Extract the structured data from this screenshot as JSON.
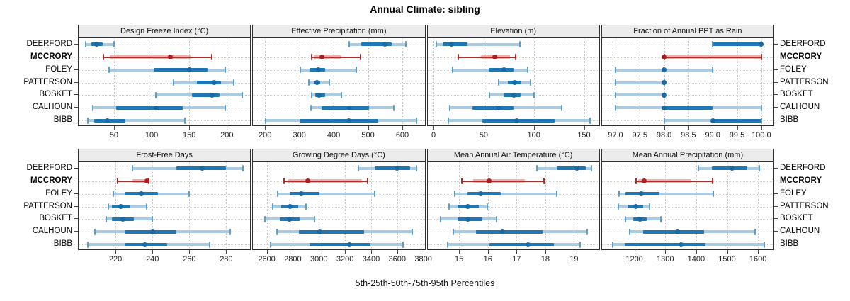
{
  "title": "Annual Climate: sibling",
  "caption": "5th-25th-50th-75th-95th Percentiles",
  "highlight_site": "MCCRORY",
  "colors": {
    "blue_light": "#A9CCE3",
    "blue_dark": "#1F77B4",
    "blue_cap": "#5C9FCB",
    "blue_dot": "#1A6AA2",
    "red_light": "#F2AFAB",
    "red_dark": "#B02A26",
    "red_dot": "#B01F1F",
    "strip_bg": "#ECECEC",
    "panel_border": "#2F2F2F",
    "grid": "#C9C9C9",
    "text": "#1A1A1A"
  },
  "chart_data": {
    "type": "dotplot-percentiles",
    "percentiles": [
      5,
      25,
      50,
      75,
      95
    ],
    "sites": [
      "DEERFORD",
      "MCCRORY",
      "FOLEY",
      "PATTERSON",
      "BOSKET",
      "CALHOUN",
      "BIBB"
    ],
    "legend_note": "values per site are [5th, 25th, 50th, 75th, 95th] percentiles",
    "panels": [
      {
        "title": "Design Freeze Index (°C)",
        "grid_row": 0,
        "grid_col": 0,
        "domain": [
          3,
          231
        ],
        "ticks": [
          50,
          100,
          150,
          200
        ],
        "tick_labels": [
          "50",
          "100",
          "150",
          "200"
        ],
        "values": {
          "DEERFORD": [
            12,
            20,
            27,
            35,
            50
          ],
          "MCCRORY": [
            36,
            44,
            125,
            153,
            180
          ],
          "FOLEY": [
            43,
            103,
            150,
            174,
            198
          ],
          "PATTERSON": [
            129,
            160,
            183,
            192,
            209
          ],
          "BOSKET": [
            106,
            154,
            180,
            190,
            220
          ],
          "CALHOUN": [
            22,
            53,
            106,
            141,
            198
          ],
          "BIBB": [
            15,
            24,
            41,
            65,
            144
          ]
        }
      },
      {
        "title": "Effective Precipitation (mm)",
        "grid_row": 0,
        "grid_col": 1,
        "domain": [
          165,
          665
        ],
        "ticks": [
          200,
          300,
          400,
          500,
          600
        ],
        "tick_labels": [
          "200",
          "300",
          "400",
          "500",
          "600"
        ],
        "values": {
          "DEERFORD": [
            445,
            481,
            549,
            570,
            611
          ],
          "MCCRORY": [
            336,
            342,
            366,
            422,
            478
          ],
          "FOLEY": [
            302,
            329,
            355,
            375,
            465
          ],
          "PATTERSON": [
            327,
            342,
            351,
            361,
            387
          ],
          "BOSKET": [
            336,
            346,
            358,
            375,
            423
          ],
          "CALHOUN": [
            333,
            365,
            447,
            502,
            576
          ],
          "BIBB": [
            202,
            301,
            445,
            530,
            642
          ]
        }
      },
      {
        "title": "Elevation (m)",
        "grid_row": 0,
        "grid_col": 2,
        "domain": [
          -6,
          165
        ],
        "ticks": [
          0,
          50,
          100,
          150
        ],
        "tick_labels": [
          "0",
          "50",
          "100",
          "150"
        ],
        "values": {
          "DEERFORD": [
            3,
            9,
            18,
            34,
            86
          ],
          "MCCRORY": [
            25,
            47,
            61,
            76,
            82
          ],
          "FOLEY": [
            19,
            55,
            70,
            80,
            94
          ],
          "PATTERSON": [
            65,
            74,
            81,
            87,
            97
          ],
          "BOSKET": [
            56,
            70,
            80,
            87,
            100
          ],
          "CALHOUN": [
            16,
            39,
            65,
            80,
            128
          ],
          "BIBB": [
            15,
            49,
            83,
            121,
            156
          ]
        }
      },
      {
        "title": "Fraction of Annual PPT as Rain",
        "grid_row": 0,
        "grid_col": 3,
        "domain": [
          96.72,
          100.25
        ],
        "ticks": [
          97.0,
          97.5,
          98.0,
          98.5,
          99.0,
          99.5,
          100.0
        ],
        "tick_labels": [
          "97.0",
          "97.5",
          "98.0",
          "98.5",
          "99.0",
          "99.5",
          "100.0"
        ],
        "values": {
          "DEERFORD": [
            99,
            99,
            100,
            100,
            100
          ],
          "MCCRORY": [
            98,
            98,
            98,
            100,
            100
          ],
          "FOLEY": [
            97,
            98,
            98,
            98,
            99
          ],
          "PATTERSON": [
            97,
            98,
            98,
            98,
            98
          ],
          "BOSKET": [
            97,
            98,
            98,
            98,
            98
          ],
          "CALHOUN": [
            97,
            98,
            98,
            99,
            100
          ],
          "BIBB": [
            98,
            99,
            99,
            100,
            100
          ]
        }
      },
      {
        "title": "Frost-Free Days",
        "grid_row": 1,
        "grid_col": 0,
        "domain": [
          200,
          293
        ],
        "ticks": [
          220,
          240,
          260,
          280
        ],
        "tick_labels": [
          "220",
          "240",
          "260",
          "280"
        ],
        "values": {
          "DEERFORD": [
            229,
            253,
            267,
            280,
            289
          ],
          "MCCRORY": [
            221,
            229,
            237,
            238,
            238
          ],
          "FOLEY": [
            219,
            225,
            234,
            243,
            260
          ],
          "PATTERSON": [
            216,
            218,
            223,
            228,
            237
          ],
          "BOSKET": [
            215,
            218,
            224,
            230,
            240
          ],
          "CALHOUN": [
            209,
            225,
            240,
            253,
            282
          ],
          "BIBB": [
            205,
            225,
            236,
            248,
            271
          ]
        }
      },
      {
        "title": "Growing Degree Days (°C)",
        "grid_row": 1,
        "grid_col": 1,
        "domain": [
          2495,
          3810
        ],
        "ticks": [
          2600,
          2800,
          3000,
          3200,
          3400,
          3600,
          3800
        ],
        "tick_labels": [
          "2600",
          "2800",
          "3000",
          "3200",
          "3400",
          "3600",
          "3800"
        ],
        "values": {
          "DEERFORD": [
            3300,
            3430,
            3600,
            3700,
            3745
          ],
          "MCCRORY": [
            2730,
            2760,
            2915,
            3330,
            3375
          ],
          "FOLEY": [
            2683,
            2775,
            2868,
            3005,
            3429
          ],
          "PATTERSON": [
            2648,
            2709,
            2776,
            2841,
            2903
          ],
          "BOSKET": [
            2586,
            2701,
            2775,
            2850,
            2965
          ],
          "CALHOUN": [
            2679,
            2847,
            3009,
            3344,
            3714
          ],
          "BIBB": [
            2630,
            2926,
            3235,
            3397,
            3644
          ]
        }
      },
      {
        "title": "Mean Annual Air Temperature (°C)",
        "grid_row": 1,
        "grid_col": 2,
        "domain": [
          13.9,
          19.87
        ],
        "ticks": [
          15,
          16,
          17,
          18,
          19
        ],
        "tick_labels": [
          "15",
          "16",
          "17",
          "18",
          "19"
        ],
        "values": {
          "DEERFORD": [
            17.7,
            18.4,
            19.1,
            19.4,
            19.6
          ],
          "MCCRORY": [
            15.1,
            15.5,
            16.05,
            17.3,
            17.95
          ],
          "FOLEY": [
            14.85,
            15.3,
            15.75,
            16.45,
            18.4
          ],
          "PATTERSON": [
            14.65,
            14.95,
            15.3,
            15.68,
            15.98
          ],
          "BOSKET": [
            14.35,
            14.95,
            15.3,
            15.8,
            16.3
          ],
          "CALHOUN": [
            14.8,
            15.6,
            16.5,
            17.9,
            19.45
          ],
          "BIBB": [
            14.6,
            16.05,
            17.4,
            18.3,
            19.2
          ]
        }
      },
      {
        "title": "Mean Annual Precipitation (mm)",
        "grid_row": 1,
        "grid_col": 3,
        "domain": [
          1095,
          1650
        ],
        "ticks": [
          1200,
          1300,
          1400,
          1500,
          1600
        ],
        "tick_labels": [
          "1200",
          "1300",
          "1400",
          "1500",
          "1600"
        ],
        "values": {
          "DEERFORD": [
            1408,
            1450,
            1515,
            1565,
            1605
          ],
          "MCCRORY": [
            1205,
            1212,
            1232,
            1385,
            1452
          ],
          "FOLEY": [
            1150,
            1172,
            1222,
            1282,
            1455
          ],
          "PATTERSON": [
            1148,
            1180,
            1205,
            1228,
            1248
          ],
          "BOSKET": [
            1172,
            1196,
            1218,
            1240,
            1285
          ],
          "CALHOUN": [
            1185,
            1228,
            1340,
            1425,
            1590
          ],
          "BIBB": [
            1130,
            1170,
            1350,
            1430,
            1620
          ]
        }
      }
    ]
  }
}
